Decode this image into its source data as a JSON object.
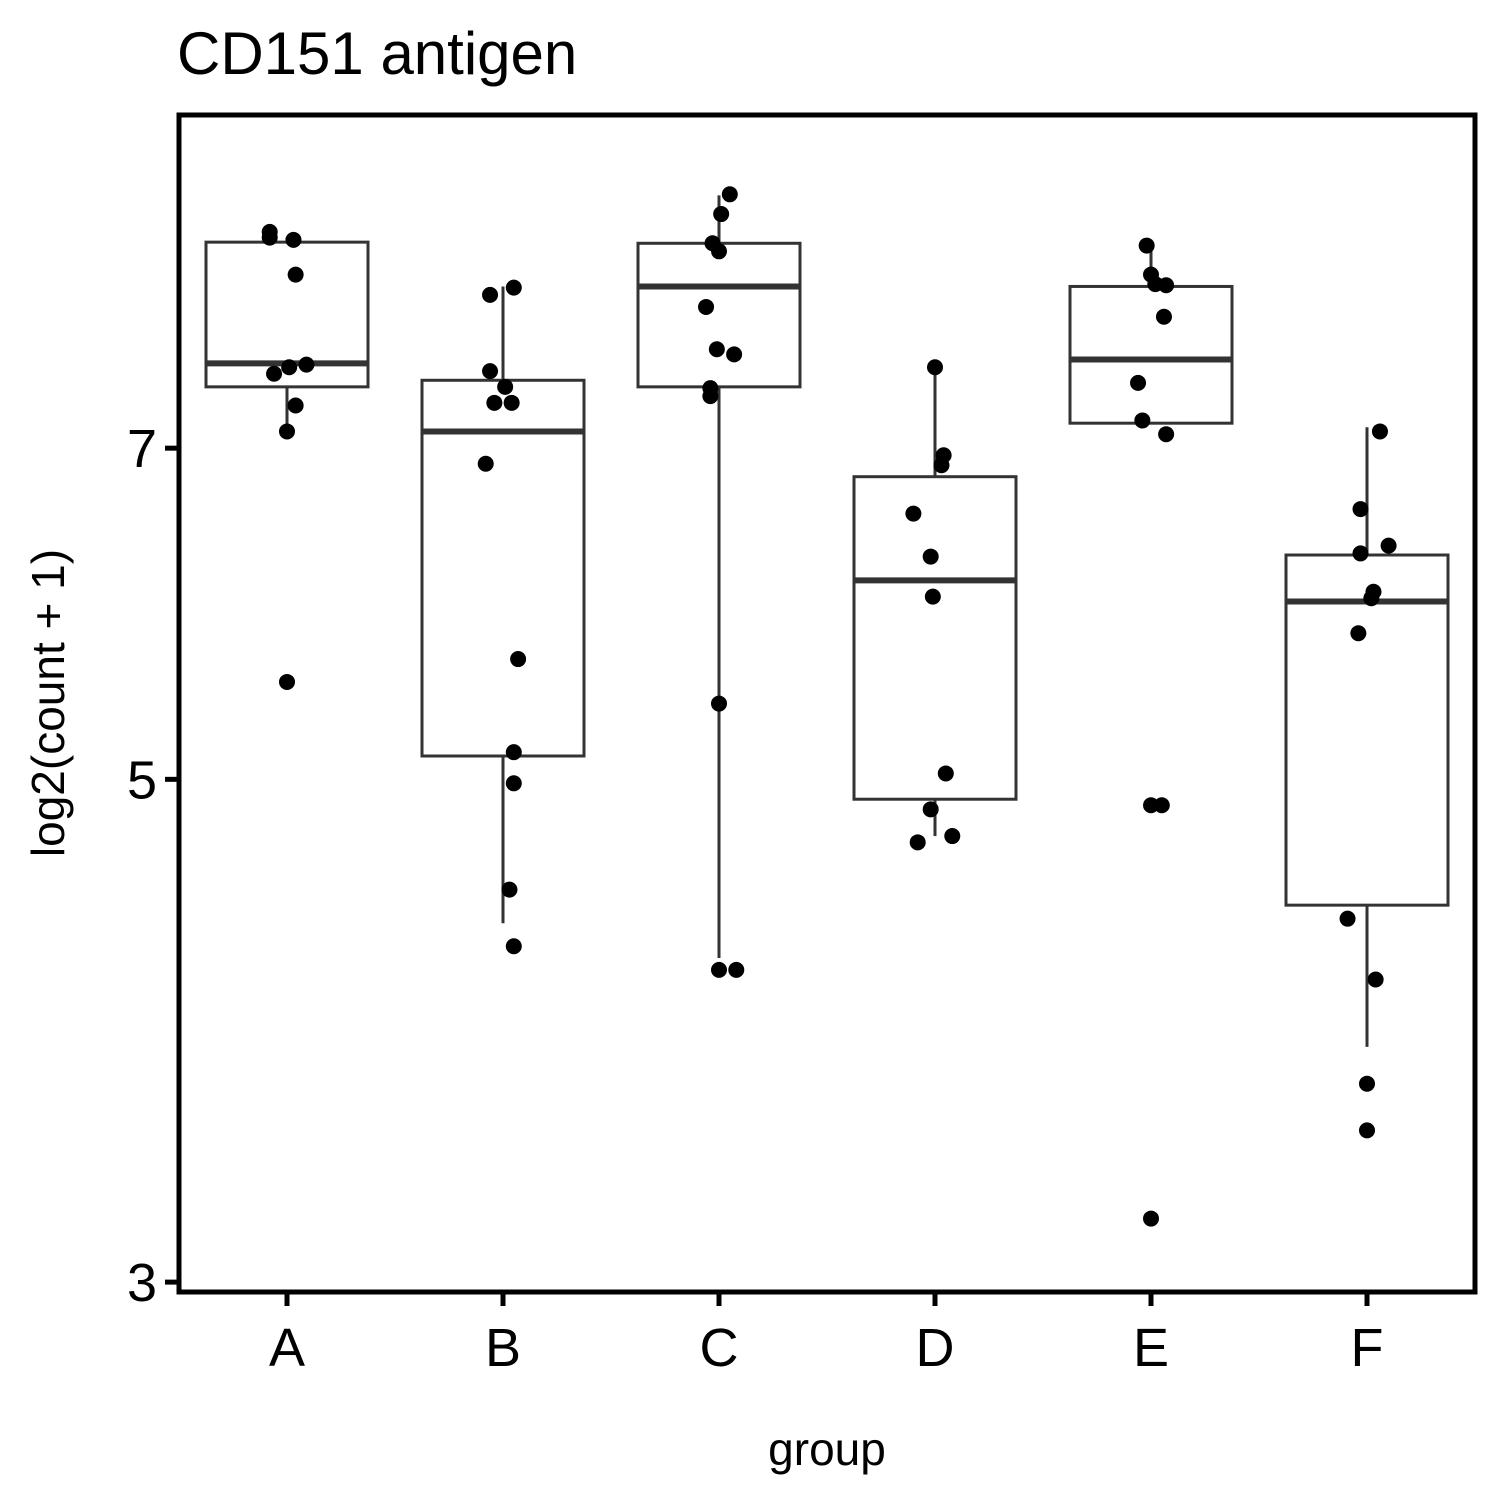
{
  "chart_data": {
    "type": "boxplot",
    "title": "CD151 antigen",
    "xlabel": "group",
    "ylabel": "log2(count + 1)",
    "ylim": [
      2.97,
      9.82
    ],
    "yscale": "log",
    "yticks": [
      3,
      5,
      7
    ],
    "grid": false,
    "legend": "none",
    "categories": [
      "A",
      "B",
      "C",
      "D",
      "E",
      "F"
    ],
    "boxes": [
      {
        "group": "A",
        "lower_whisker": 7.15,
        "q1": 7.45,
        "median": 7.63,
        "q3": 8.63,
        "upper_whisker": 8.67
      },
      {
        "group": "B",
        "lower_whisker": 4.32,
        "q1": 5.12,
        "median": 7.12,
        "q3": 7.5,
        "upper_whisker": 8.25
      },
      {
        "group": "C",
        "lower_whisker": 4.17,
        "q1": 7.45,
        "median": 8.25,
        "q3": 8.62,
        "upper_whisker": 9.05
      },
      {
        "group": "D",
        "lower_whisker": 4.72,
        "q1": 4.9,
        "median": 6.12,
        "q3": 6.8,
        "upper_whisker": 7.6
      },
      {
        "group": "E",
        "lower_whisker": 7.18,
        "q1": 7.18,
        "median": 7.66,
        "q3": 8.25,
        "upper_whisker": 8.6
      },
      {
        "group": "F",
        "lower_whisker": 3.81,
        "q1": 4.4,
        "median": 5.99,
        "q3": 6.28,
        "upper_whisker": 7.15
      }
    ],
    "points": [
      {
        "group": "A",
        "y": 8.72,
        "dx": -0.08
      },
      {
        "group": "A",
        "y": 8.67,
        "dx": -0.08
      },
      {
        "group": "A",
        "y": 8.65,
        "dx": 0.03
      },
      {
        "group": "A",
        "y": 8.35,
        "dx": 0.04
      },
      {
        "group": "A",
        "y": 7.62,
        "dx": 0.09
      },
      {
        "group": "A",
        "y": 7.6,
        "dx": 0.01
      },
      {
        "group": "A",
        "y": 7.55,
        "dx": -0.06
      },
      {
        "group": "A",
        "y": 7.31,
        "dx": 0.04
      },
      {
        "group": "A",
        "y": 7.12,
        "dx": 0.0
      },
      {
        "group": "A",
        "y": 5.52,
        "dx": 0.0
      },
      {
        "group": "B",
        "y": 8.24,
        "dx": 0.05
      },
      {
        "group": "B",
        "y": 8.18,
        "dx": -0.06
      },
      {
        "group": "B",
        "y": 7.57,
        "dx": -0.06
      },
      {
        "group": "B",
        "y": 7.45,
        "dx": 0.01
      },
      {
        "group": "B",
        "y": 7.33,
        "dx": -0.04
      },
      {
        "group": "B",
        "y": 7.33,
        "dx": 0.04
      },
      {
        "group": "B",
        "y": 6.89,
        "dx": -0.08
      },
      {
        "group": "B",
        "y": 5.65,
        "dx": 0.07
      },
      {
        "group": "B",
        "y": 5.14,
        "dx": 0.05
      },
      {
        "group": "B",
        "y": 4.98,
        "dx": 0.05
      },
      {
        "group": "B",
        "y": 4.47,
        "dx": 0.03
      },
      {
        "group": "B",
        "y": 4.22,
        "dx": 0.05
      },
      {
        "group": "C",
        "y": 9.06,
        "dx": 0.05
      },
      {
        "group": "C",
        "y": 8.88,
        "dx": 0.01
      },
      {
        "group": "C",
        "y": 8.62,
        "dx": -0.03
      },
      {
        "group": "C",
        "y": 8.55,
        "dx": 0.0
      },
      {
        "group": "C",
        "y": 8.08,
        "dx": -0.06
      },
      {
        "group": "C",
        "y": 7.74,
        "dx": -0.01
      },
      {
        "group": "C",
        "y": 7.7,
        "dx": 0.07
      },
      {
        "group": "C",
        "y": 7.44,
        "dx": -0.04
      },
      {
        "group": "C",
        "y": 7.38,
        "dx": -0.04
      },
      {
        "group": "C",
        "y": 5.4,
        "dx": 0.0
      },
      {
        "group": "C",
        "y": 4.12,
        "dx": 0.0
      },
      {
        "group": "C",
        "y": 4.12,
        "dx": 0.08
      },
      {
        "group": "D",
        "y": 7.6,
        "dx": 0.0
      },
      {
        "group": "D",
        "y": 6.95,
        "dx": 0.04
      },
      {
        "group": "D",
        "y": 6.88,
        "dx": 0.03
      },
      {
        "group": "D",
        "y": 6.55,
        "dx": -0.1
      },
      {
        "group": "D",
        "y": 6.27,
        "dx": -0.02
      },
      {
        "group": "D",
        "y": 6.02,
        "dx": -0.01
      },
      {
        "group": "D",
        "y": 5.03,
        "dx": 0.05
      },
      {
        "group": "D",
        "y": 4.85,
        "dx": -0.02
      },
      {
        "group": "D",
        "y": 4.72,
        "dx": 0.08
      },
      {
        "group": "D",
        "y": 4.69,
        "dx": -0.08
      },
      {
        "group": "E",
        "y": 8.6,
        "dx": -0.02
      },
      {
        "group": "E",
        "y": 8.35,
        "dx": 0.0
      },
      {
        "group": "E",
        "y": 8.27,
        "dx": 0.02
      },
      {
        "group": "E",
        "y": 8.26,
        "dx": 0.07
      },
      {
        "group": "E",
        "y": 8.0,
        "dx": 0.06
      },
      {
        "group": "E",
        "y": 7.48,
        "dx": -0.06
      },
      {
        "group": "E",
        "y": 7.2,
        "dx": -0.04
      },
      {
        "group": "E",
        "y": 7.1,
        "dx": 0.07
      },
      {
        "group": "E",
        "y": 4.87,
        "dx": 0.0
      },
      {
        "group": "E",
        "y": 4.87,
        "dx": 0.05
      },
      {
        "group": "E",
        "y": 3.2,
        "dx": 0.0
      },
      {
        "group": "F",
        "y": 7.12,
        "dx": 0.06
      },
      {
        "group": "F",
        "y": 6.58,
        "dx": -0.03
      },
      {
        "group": "F",
        "y": 6.34,
        "dx": 0.1
      },
      {
        "group": "F",
        "y": 6.29,
        "dx": -0.03
      },
      {
        "group": "F",
        "y": 6.05,
        "dx": 0.03
      },
      {
        "group": "F",
        "y": 6.01,
        "dx": 0.02
      },
      {
        "group": "F",
        "y": 5.8,
        "dx": -0.04
      },
      {
        "group": "F",
        "y": 4.34,
        "dx": -0.09
      },
      {
        "group": "F",
        "y": 4.08,
        "dx": 0.04
      },
      {
        "group": "F",
        "y": 3.67,
        "dx": 0.0
      },
      {
        "group": "F",
        "y": 3.5,
        "dx": 0.0
      }
    ]
  }
}
